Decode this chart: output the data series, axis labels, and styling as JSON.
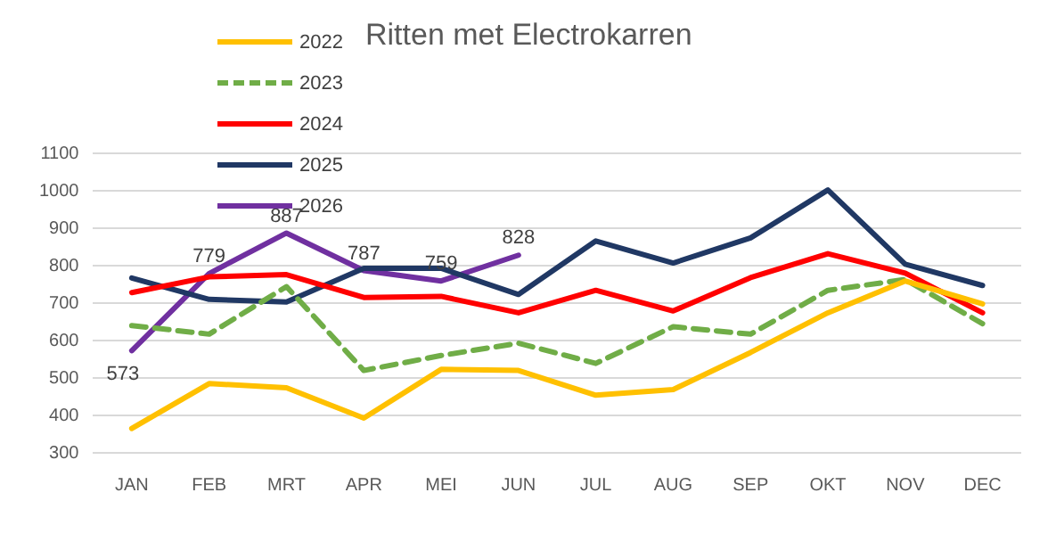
{
  "chart_data": {
    "type": "line",
    "title": "Ritten met Electrokarren",
    "categories": [
      "JAN",
      "FEB",
      "MRT",
      "APR",
      "MEI",
      "JUN",
      "JUL",
      "AUG",
      "SEP",
      "OKT",
      "NOV",
      "DEC"
    ],
    "series": [
      {
        "name": "2022",
        "color": "#ffc000",
        "values": [
          365,
          485,
          474,
          393,
          523,
          520,
          454,
          469,
          568,
          674,
          759,
          698
        ]
      },
      {
        "name": "2023",
        "color": "#70ad47",
        "line_style": "dashed",
        "values": [
          640,
          617,
          744,
          520,
          560,
          593,
          539,
          637,
          617,
          734,
          763,
          645
        ]
      },
      {
        "name": "2024",
        "color": "#ff0000",
        "values": [
          728,
          770,
          776,
          715,
          718,
          674,
          734,
          679,
          768,
          832,
          780,
          674
        ]
      },
      {
        "name": "2025",
        "color": "#203864",
        "values": [
          767,
          710,
          703,
          793,
          793,
          723,
          866,
          807,
          874,
          1002,
          804,
          747
        ]
      },
      {
        "name": "2026",
        "color": "#7030a0",
        "data_labels": true,
        "values": [
          573,
          779,
          887,
          787,
          759,
          828,
          null,
          null,
          null,
          null,
          null,
          null
        ]
      }
    ],
    "ylim": [
      300,
      1100
    ],
    "yticks": [
      300,
      400,
      500,
      600,
      700,
      800,
      900,
      1000,
      1100
    ],
    "grid": "y",
    "legend": "top left",
    "marker": "none",
    "line_style": "solid"
  }
}
